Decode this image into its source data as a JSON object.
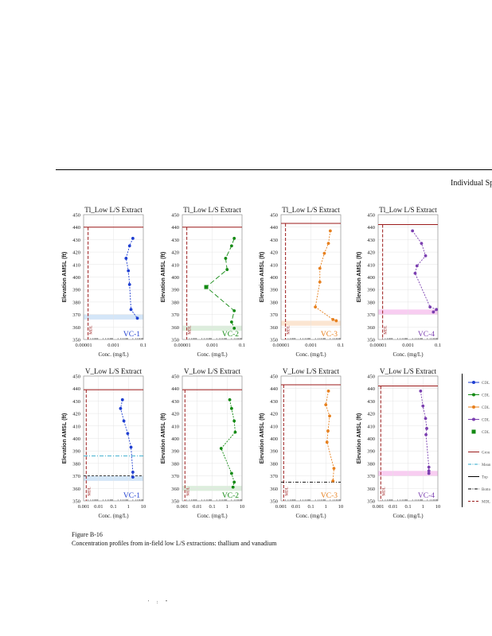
{
  "page": {
    "header": "Individual Sp",
    "caption_number": "Figure B-16",
    "caption_text": "Concentration profiles from in-field low L/S extractions: thallium and vanadium",
    "footer_mark": "' : \""
  },
  "colors": {
    "blue": "#1f3fd1",
    "green": "#138a13",
    "orange": "#e7801e",
    "purple": "#7b3fb0",
    "ground": "#9b1a1a",
    "mdl": "#9b1a1a"
  },
  "legend": [
    {
      "label": "CDL",
      "color": "#1f3fd1",
      "kind": "marker-line"
    },
    {
      "label": "CDL",
      "color": "#138a13",
      "kind": "marker-line"
    },
    {
      "label": "CDL",
      "color": "#e7801e",
      "kind": "marker-line"
    },
    {
      "label": "CDL",
      "color": "#7b3fb0",
      "kind": "marker-line"
    },
    {
      "label": "CDL",
      "color": "#138a13",
      "kind": "square"
    },
    {
      "label": "Grou",
      "color": "#9b1a1a",
      "kind": "solid"
    },
    {
      "label": "Mean",
      "color": "#2ba7c9",
      "kind": "dashdot"
    },
    {
      "label": "Top",
      "color": "#000000",
      "kind": "solid"
    },
    {
      "label": "Botto",
      "color": "#000000",
      "kind": "dashdot"
    },
    {
      "label": "MDL",
      "color": "#9b1a1a",
      "kind": "dashed"
    }
  ],
  "chart_data": [
    {
      "type": "scatter",
      "title": "Tl_Low L/S Extract",
      "xlabel": "Conc. (mg/L)",
      "ylabel": "Elevation AMSL (ft)",
      "xscale": "log",
      "xlim": [
        1e-05,
        0.1
      ],
      "xticks": [
        "0.00001",
        "0.001",
        "0.1"
      ],
      "ylim": [
        350,
        450
      ],
      "color": "#1f3fd1",
      "well": "VC-1",
      "ground": 440,
      "mdl": 2e-05,
      "mdl_label": "MDL",
      "band": [
        366,
        370
      ],
      "band_color": "#cfe3f7",
      "series": [
        {
          "name": "CDL",
          "points": [
            [
              0.02,
              431
            ],
            [
              0.012,
              425
            ],
            [
              0.007,
              415
            ],
            [
              0.01,
              405
            ],
            [
              0.012,
              394
            ],
            [
              0.015,
              374
            ],
            [
              0.04,
              367
            ]
          ]
        }
      ]
    },
    {
      "type": "scatter",
      "title": "Tl_Low L/S Extract",
      "xlabel": "Conc. (mg/L)",
      "ylabel": "Elevation AMSL (ft)",
      "xscale": "log",
      "xlim": [
        1e-05,
        0.1
      ],
      "xticks": [
        "0.00001",
        "0.001",
        "0.1"
      ],
      "ylim": [
        350,
        450
      ],
      "color": "#138a13",
      "well": "VC-2",
      "ground": 440,
      "mdl": 2e-05,
      "mdl_label": "MDL",
      "band": [
        357,
        361
      ],
      "band_color": "#d8ecd8",
      "series": [
        {
          "name": "CDL",
          "points": [
            [
              0.03,
              431
            ],
            [
              0.02,
              425
            ],
            [
              0.008,
              415
            ],
            [
              0.01,
              406
            ],
            [
              0.0004,
              392
            ],
            [
              0.03,
              373
            ],
            [
              0.02,
              364
            ],
            [
              0.03,
              359
            ]
          ]
        }
      ]
    },
    {
      "type": "scatter",
      "title": "Tl_Low L/S Extract",
      "xlabel": "Conc. (mg/L)",
      "ylabel": "Elevation AMSL (ft)",
      "xscale": "log",
      "xlim": [
        1e-05,
        0.1
      ],
      "xticks": [
        "0.00001",
        "0.001",
        "0.1"
      ],
      "ylim": [
        350,
        450
      ],
      "color": "#e7801e",
      "well": "VC-3",
      "ground": 443,
      "mdl": 2e-05,
      "mdl_label": "MDL",
      "band": [
        361,
        365
      ],
      "band_color": "#fbe2cc",
      "series": [
        {
          "name": "CDL",
          "points": [
            [
              0.02,
              437
            ],
            [
              0.015,
              427
            ],
            [
              0.008,
              419
            ],
            [
              0.004,
              407
            ],
            [
              0.004,
              396
            ],
            [
              0.002,
              376
            ],
            [
              0.03,
              366
            ],
            [
              0.05,
              365
            ]
          ]
        }
      ]
    },
    {
      "type": "scatter",
      "title": "Tl_Low L/S Extract",
      "xlabel": "Conc. (mg/L)",
      "ylabel": "Elevation AMSL (ft)",
      "xscale": "log",
      "xlim": [
        1e-05,
        0.1
      ],
      "xticks": [
        "0.00001",
        "0.001",
        "0.1"
      ],
      "ylim": [
        350,
        450
      ],
      "color": "#7b3fb0",
      "well": "VC-4",
      "ground": 442,
      "mdl": 2e-05,
      "mdl_label": "MDL",
      "band": [
        370,
        374
      ],
      "band_color": "#f7c8f0",
      "series": [
        {
          "name": "CDL",
          "points": [
            [
              0.002,
              437
            ],
            [
              0.008,
              427
            ],
            [
              0.015,
              417
            ],
            [
              0.004,
              409
            ],
            [
              0.003,
              403
            ],
            [
              0.03,
              376
            ],
            [
              0.08,
              374
            ],
            [
              0.05,
              372
            ]
          ]
        }
      ]
    },
    {
      "type": "scatter",
      "title": "V_Low L/S Extract",
      "xlabel": "Conc. (mg/L)",
      "ylabel": "Elevation AMSL (ft)",
      "xscale": "log",
      "xlim": [
        0.001,
        10
      ],
      "xticks": [
        "0.001",
        "0.01",
        "0.1",
        "1",
        "10"
      ],
      "ylim": [
        350,
        450
      ],
      "color": "#1f3fd1",
      "well": "VC-1",
      "ground": 439,
      "mdl": 0.0015,
      "mdl_label": "MDL",
      "band": [
        366,
        370
      ],
      "band_color": "#cfe3f7",
      "mean": 386,
      "top": 370,
      "series": [
        {
          "name": "CDL",
          "points": [
            [
              0.4,
              431
            ],
            [
              0.3,
              424
            ],
            [
              0.5,
              414
            ],
            [
              0.9,
              404
            ],
            [
              1.5,
              393
            ],
            [
              2,
              373
            ],
            [
              2,
              369
            ]
          ]
        }
      ]
    },
    {
      "type": "scatter",
      "title": "V_Low L/S Extract",
      "xlabel": "Conc. (mg/L)",
      "ylabel": "Elevation AMSL (ft)",
      "xscale": "log",
      "xlim": [
        0.001,
        10
      ],
      "xticks": [
        "0.001",
        "0.01",
        "0.1",
        "1",
        "10"
      ],
      "ylim": [
        350,
        450
      ],
      "color": "#138a13",
      "well": "VC-2",
      "ground": 439,
      "mdl": 0.0015,
      "mdl_label": "MDL",
      "band": [
        358,
        362
      ],
      "band_color": "#d8ecd8",
      "series": [
        {
          "name": "CDL",
          "points": [
            [
              1.5,
              431
            ],
            [
              2,
              424
            ],
            [
              3,
              414
            ],
            [
              3.5,
              405
            ],
            [
              0.4,
              392
            ],
            [
              2,
              372
            ],
            [
              3,
              365
            ],
            [
              2.5,
              361
            ]
          ]
        }
      ]
    },
    {
      "type": "scatter",
      "title": "V_Low L/S Extract",
      "xlabel": "Conc. (mg/L)",
      "ylabel": "Elevation AMSL (ft)",
      "xscale": "log",
      "xlim": [
        0.001,
        10
      ],
      "xticks": [
        "0.001",
        "0.01",
        "0.1",
        "1",
        "10"
      ],
      "ylim": [
        350,
        450
      ],
      "color": "#e7801e",
      "well": "VC-3",
      "ground": 443,
      "mdl": 0.0015,
      "mdl_label": "MDL",
      "bottom": 365,
      "series": [
        {
          "name": "CDL",
          "points": [
            [
              1.5,
              438
            ],
            [
              1,
              427
            ],
            [
              1.8,
              418
            ],
            [
              1.4,
              406
            ],
            [
              1.2,
              397
            ],
            [
              3.5,
              376
            ],
            [
              3,
              366
            ]
          ]
        }
      ]
    },
    {
      "type": "scatter",
      "title": "V_Low L/S Extract",
      "xlabel": "Conc. (mg/L)",
      "ylabel": "Elevation AMSL (ft)",
      "xscale": "log",
      "xlim": [
        0.001,
        10
      ],
      "xticks": [
        "0.001",
        "0.01",
        "0.1",
        "1",
        "10"
      ],
      "ylim": [
        350,
        450
      ],
      "color": "#7b3fb0",
      "well": "VC-4",
      "ground": 442,
      "mdl": 0.0015,
      "mdl_label": "MDL",
      "band": [
        370,
        374
      ],
      "band_color": "#f7c8f0",
      "series": [
        {
          "name": "CDL",
          "points": [
            [
              0.7,
              438
            ],
            [
              1,
              426
            ],
            [
              1.5,
              416
            ],
            [
              1.8,
              408
            ],
            [
              1.6,
              403
            ],
            [
              2.5,
              377
            ],
            [
              2.5,
              374
            ],
            [
              2.5,
              372
            ]
          ]
        }
      ]
    }
  ]
}
